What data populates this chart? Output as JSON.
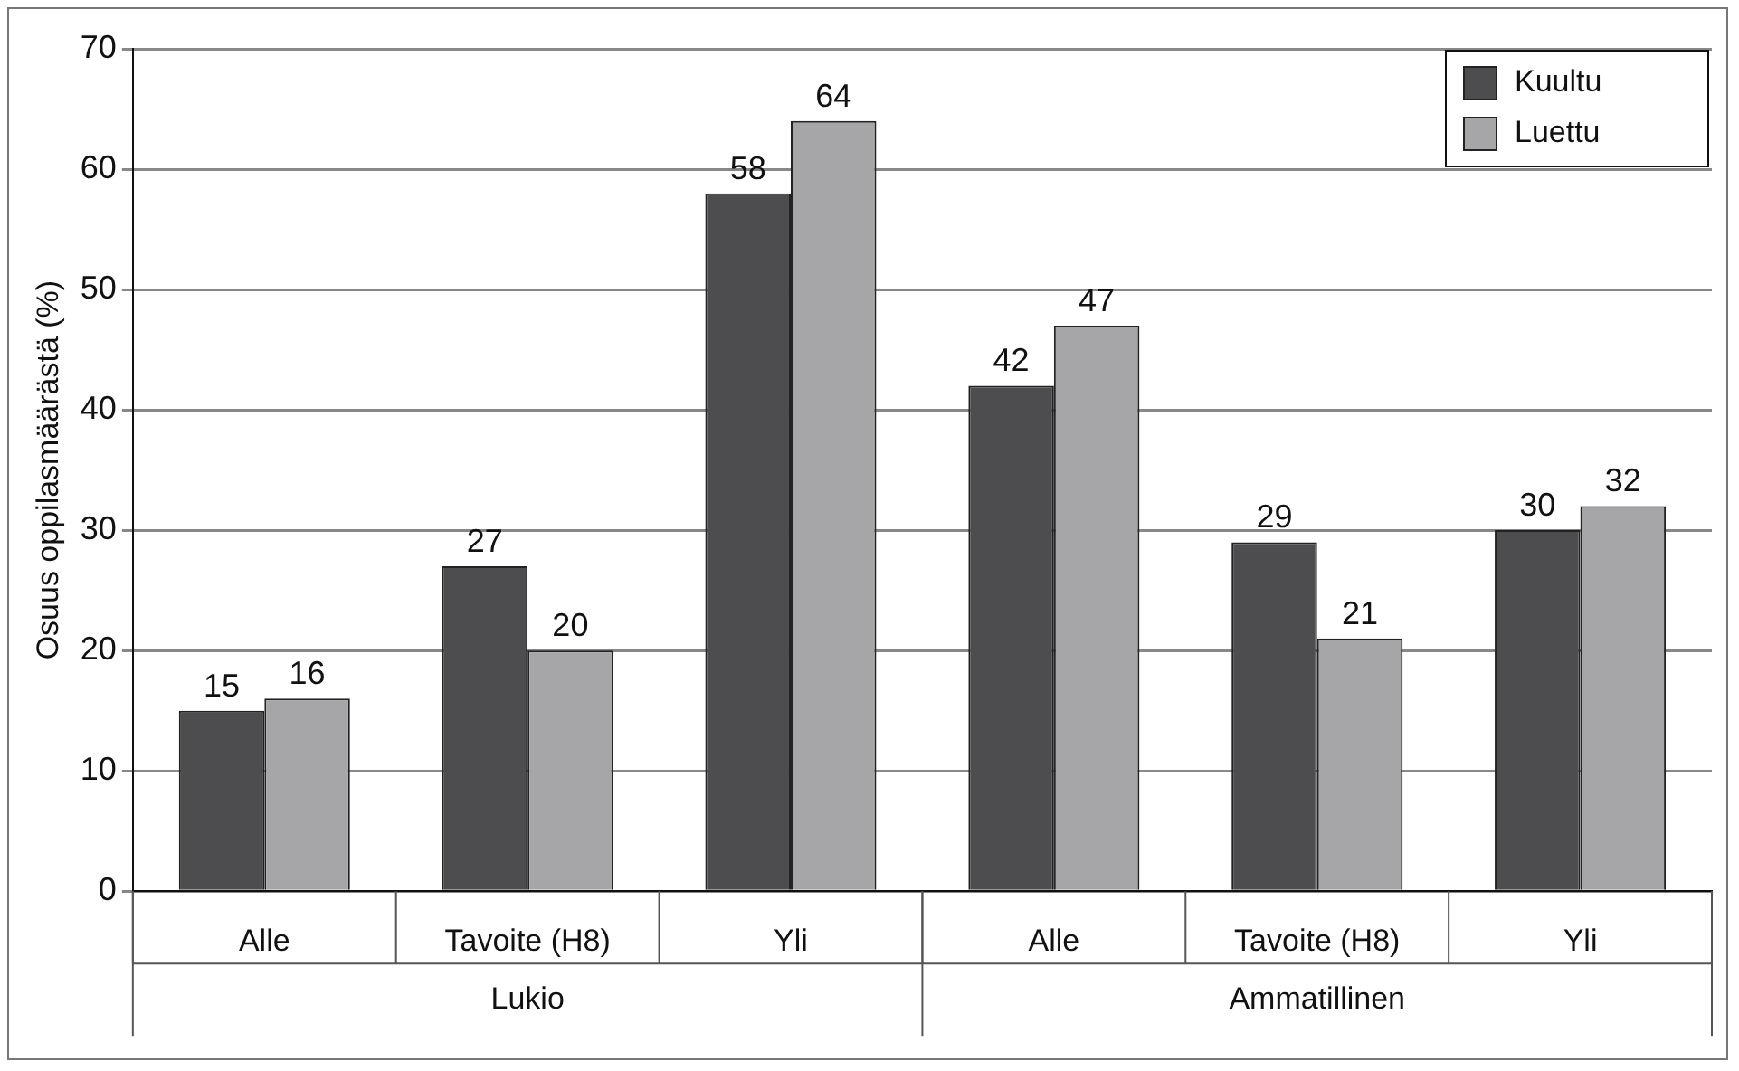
{
  "chart_data": {
    "type": "bar",
    "ylabel": "Osuus oppilasmäärästä (%)",
    "categories": [
      "Alle",
      "Tavoite (H8)",
      "Yli",
      "Alle",
      "Tavoite (H8)",
      "Yli"
    ],
    "series": [
      {
        "name": "Kuultu",
        "color": "#4d4d4f",
        "values": [
          15,
          27,
          58,
          42,
          29,
          30
        ]
      },
      {
        "name": "Luettu",
        "color": "#a6a6a8",
        "values": [
          16,
          20,
          64,
          47,
          21,
          32
        ]
      }
    ],
    "ylim": [
      0,
      70
    ],
    "yticks": [
      0,
      10,
      20,
      30,
      40,
      50,
      60,
      70
    ],
    "grid": "y",
    "legend": "top right",
    "data_labels": true,
    "annotations": [
      "Lukio",
      "Ammatillinen"
    ]
  }
}
